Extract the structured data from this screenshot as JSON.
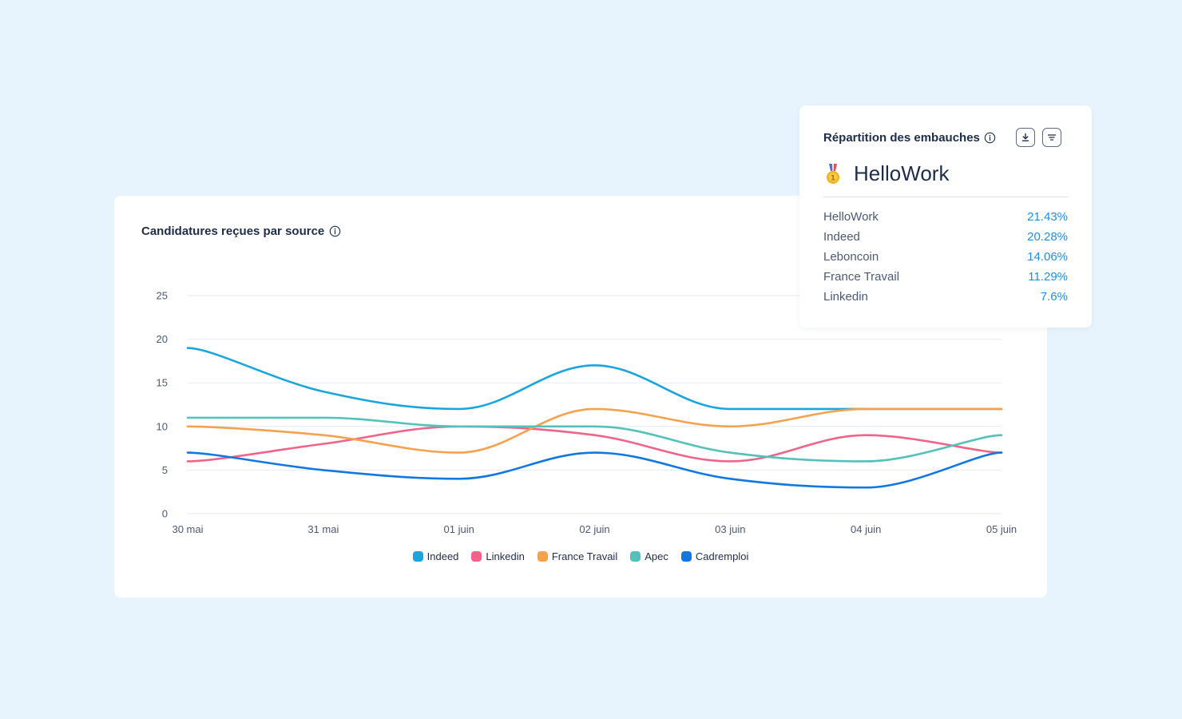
{
  "chart_card": {
    "title": "Candidatures reçues par source"
  },
  "chart_data": {
    "type": "line",
    "title": "Candidatures reçues par source",
    "xlabel": "",
    "ylabel": "",
    "categories": [
      "30 mai",
      "31 mai",
      "01 juin",
      "02 juin",
      "03 juin",
      "04 juin",
      "05 juin"
    ],
    "y_ticks": [
      0,
      5,
      10,
      15,
      20,
      25
    ],
    "ylim": [
      0,
      25
    ],
    "grid": true,
    "legend_position": "bottom",
    "series": [
      {
        "name": "Indeed",
        "color": "#1aa5de",
        "values": [
          19,
          14,
          12,
          17,
          12,
          12,
          12
        ]
      },
      {
        "name": "Linkedin",
        "color": "#f0648a",
        "values": [
          6,
          8,
          10,
          9,
          6,
          9,
          7
        ]
      },
      {
        "name": "France Travail",
        "color": "#f6a14e",
        "values": [
          10,
          9,
          7,
          12,
          10,
          12,
          12
        ]
      },
      {
        "name": "Apec",
        "color": "#54c1bb",
        "values": [
          11,
          11,
          10,
          10,
          7,
          6,
          9
        ]
      },
      {
        "name": "Cadremploi",
        "color": "#1278e0",
        "values": [
          7,
          5,
          4,
          7,
          4,
          3,
          7
        ]
      }
    ]
  },
  "side_card": {
    "title": "Répartition des embauches",
    "winner_icon": "medal-icon",
    "winner": "HelloWork",
    "download_icon": "download-icon",
    "filter_icon": "filter-icon",
    "items": [
      {
        "name": "HelloWork",
        "value": "21.43%"
      },
      {
        "name": "Indeed",
        "value": "20.28%"
      },
      {
        "name": "Leboncoin",
        "value": "14.06%"
      },
      {
        "name": "France Travail",
        "value": "11.29%"
      },
      {
        "name": "Linkedin",
        "value": "7.6%"
      }
    ]
  }
}
